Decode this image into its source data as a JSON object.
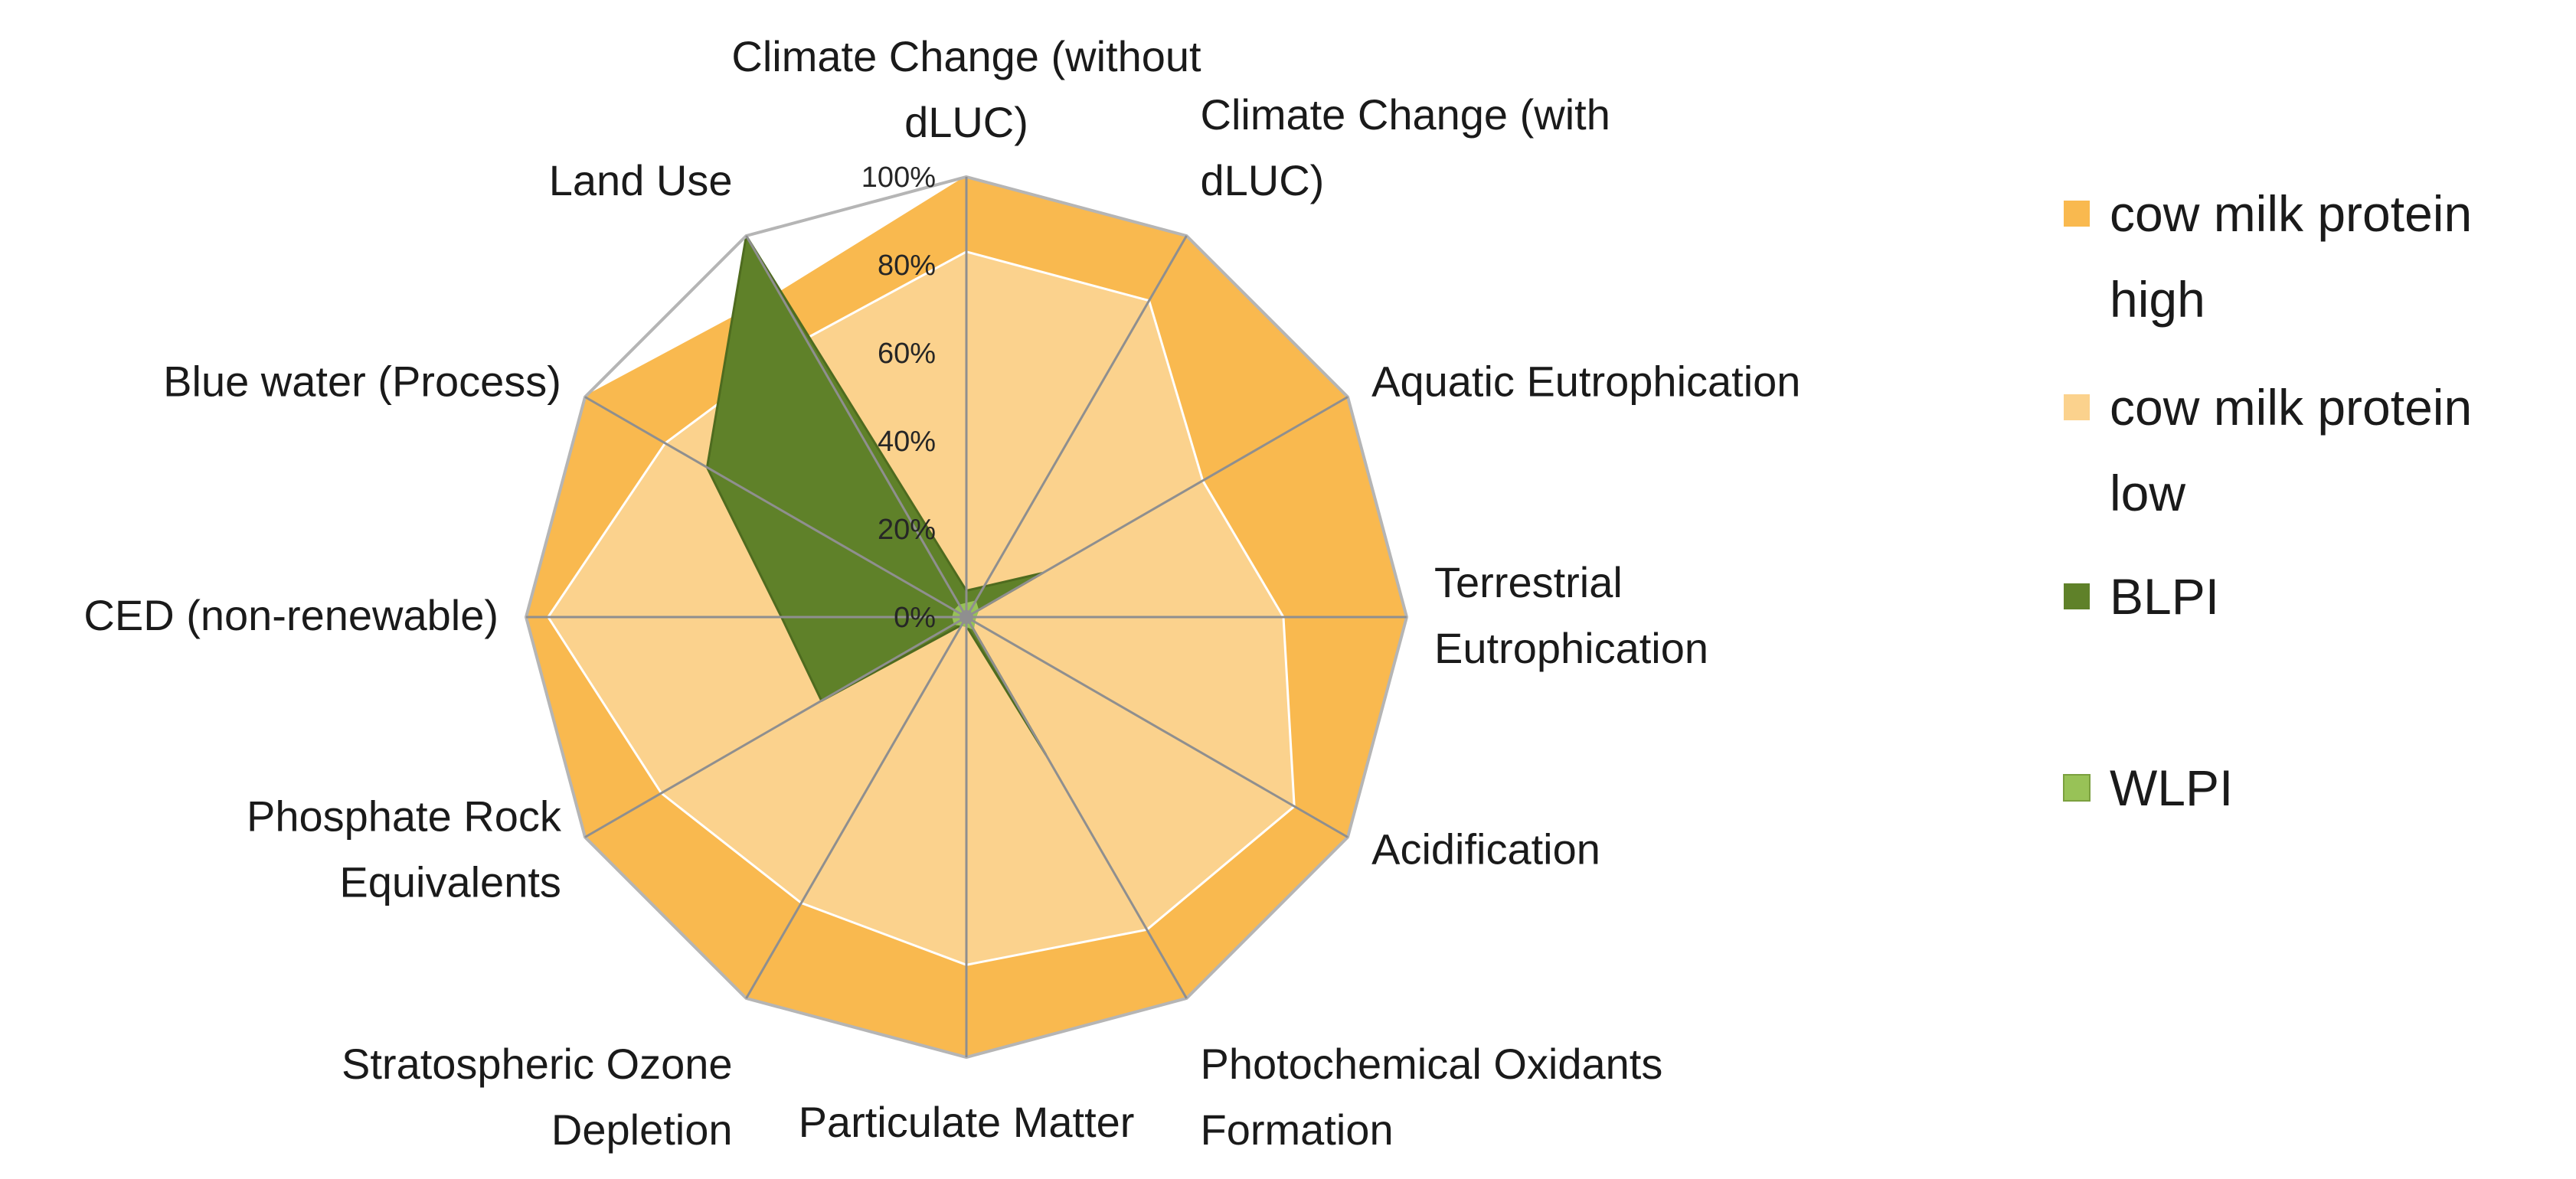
{
  "chart_data": {
    "type": "radar",
    "axes": [
      [
        "Climate Change (without",
        "dLUC)"
      ],
      [
        "Climate Change (with",
        "dLUC)"
      ],
      [
        "Aquatic Eutrophication"
      ],
      [
        "Terrestrial",
        "Eutrophication"
      ],
      [
        "Acidification"
      ],
      [
        "Photochemical Oxidants",
        "Formation"
      ],
      [
        "Particulate Matter"
      ],
      [
        "Stratospheric Ozone",
        "Depletion"
      ],
      [
        "Phosphate Rock",
        "Equivalents"
      ],
      [
        "CED (non-renewable)"
      ],
      [
        "Blue water (Process)"
      ],
      [
        "Land Use"
      ]
    ],
    "tick_labels": [
      "0%",
      "20%",
      "40%",
      "60%",
      "80%",
      "100%"
    ],
    "ticks": [
      0,
      20,
      40,
      60,
      80,
      100
    ],
    "range": [
      0,
      100
    ],
    "legend_position": "right",
    "series": [
      {
        "name": [
          "cow milk protein",
          "high"
        ],
        "color": "#F9B94F",
        "values": [
          100,
          100,
          100,
          100,
          100,
          100,
          100,
          100,
          100,
          100,
          100,
          85
        ]
      },
      {
        "name": [
          "cow milk protein",
          "low"
        ],
        "color": "#FBD28D",
        "values": [
          83,
          83,
          62,
          72,
          86,
          82,
          79,
          75,
          80,
          95,
          79,
          73
        ]
      },
      {
        "name": [
          "BLPI"
        ],
        "color": "#5F8129",
        "values": [
          6,
          8,
          20,
          0,
          0,
          36,
          2,
          2,
          38,
          42,
          68,
          100
        ]
      },
      {
        "name": [
          "WLPI"
        ],
        "color": "#98C257",
        "values": [
          3,
          4,
          3,
          2,
          2,
          3,
          2,
          2,
          3,
          3,
          3,
          3
        ]
      }
    ]
  }
}
